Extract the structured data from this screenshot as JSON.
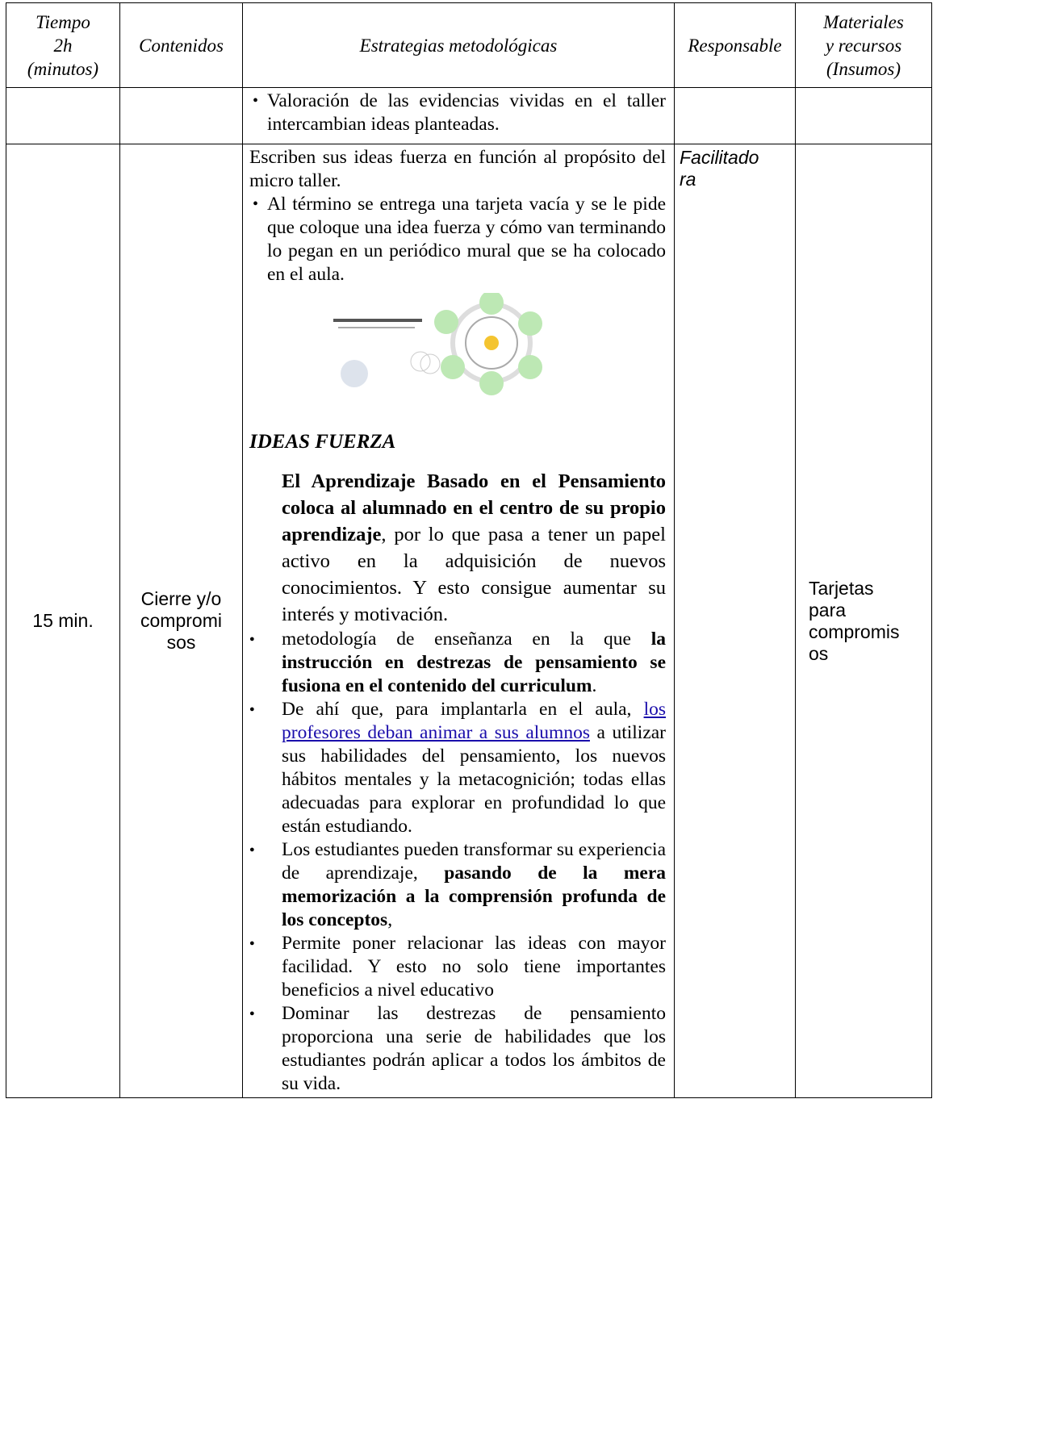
{
  "table": {
    "header": [
      [
        "Tiempo",
        "2h",
        "(minutos)"
      ],
      [
        "Contenidos"
      ],
      [
        "Estrategias metodológicas"
      ],
      [
        "Responsable"
      ],
      [
        "Materiales",
        "y recursos",
        "(Insumos)"
      ]
    ],
    "rows": [
      {
        "strategy": [
          {
            "style": "dot",
            "runs": [
              {
                "text": "Valoración de las evidencias vividas en el taller intercambian ideas planteadas."
              }
            ]
          }
        ]
      },
      {
        "time": [
          "15 min."
        ],
        "contents": [
          "Cierre y/o",
          "compromi",
          "sos"
        ],
        "responsible": [
          "Facilitado",
          "ra"
        ],
        "materials": [
          "Tarjetas",
          "para",
          "compromis",
          "os"
        ],
        "strategy": [
          {
            "style": "plain",
            "runs": [
              {
                "text": "Escriben sus ideas fuerza en función al propósito del micro taller."
              }
            ]
          },
          {
            "style": "dot",
            "runs": [
              {
                "text": "Al término se entrega una tarjeta vacía y se le pide que coloque una idea fuerza y cómo van terminando lo pegan en un periódico mural que se ha colocado en el aula."
              }
            ]
          },
          {
            "style": "image"
          },
          {
            "style": "heading",
            "runs": [
              {
                "text": "IDEAS FUERZA"
              }
            ]
          },
          {
            "style": "indent",
            "runs": [
              {
                "text": "El Aprendizaje Basado en el Pensamiento coloca al alumnado en el centro de su propio aprendizaje",
                "bold": true
              },
              {
                "text": ", por lo que pasa a tener un papel activo en la adquisición de nuevos conocimientos. Y esto consigue aumentar su interés y motivación."
              }
            ]
          },
          {
            "style": "disc",
            "runs": [
              {
                "text": "metodología de enseñanza en la que "
              },
              {
                "text": "la instrucción en destrezas de pensamiento se fusiona en el contenido del curriculum",
                "bold": true
              },
              {
                "text": "."
              }
            ]
          },
          {
            "style": "disc",
            "runs": [
              {
                "text": "De ahí que, para implantarla en el aula, "
              },
              {
                "text": "los profesores deban animar a sus alumnos",
                "link": true
              },
              {
                "text": " a utilizar sus habilidades del pensamiento, los nuevos hábitos mentales y la metacognición; todas ellas adecuadas para explorar en profundidad lo que están estudiando."
              }
            ]
          },
          {
            "style": "disc",
            "runs": [
              {
                "text": "Los estudiantes pueden transformar su experiencia de aprendizaje, "
              },
              {
                "text": "pasando de la mera memorización a la comprensión profunda de los conceptos",
                "bold": true
              },
              {
                "text": ","
              }
            ]
          },
          {
            "style": "disc",
            "runs": [
              {
                "text": "Permite poner relacionar las ideas con mayor facilidad. Y esto no solo tiene importantes beneficios a nivel educativo"
              }
            ]
          },
          {
            "style": "disc",
            "runs": [
              {
                "text": "Dominar las destrezas de pensamiento proporciona una serie de habilidades que los estudiantes podrán aplicar a todos los ámbitos de su vida."
              }
            ]
          }
        ]
      }
    ]
  }
}
